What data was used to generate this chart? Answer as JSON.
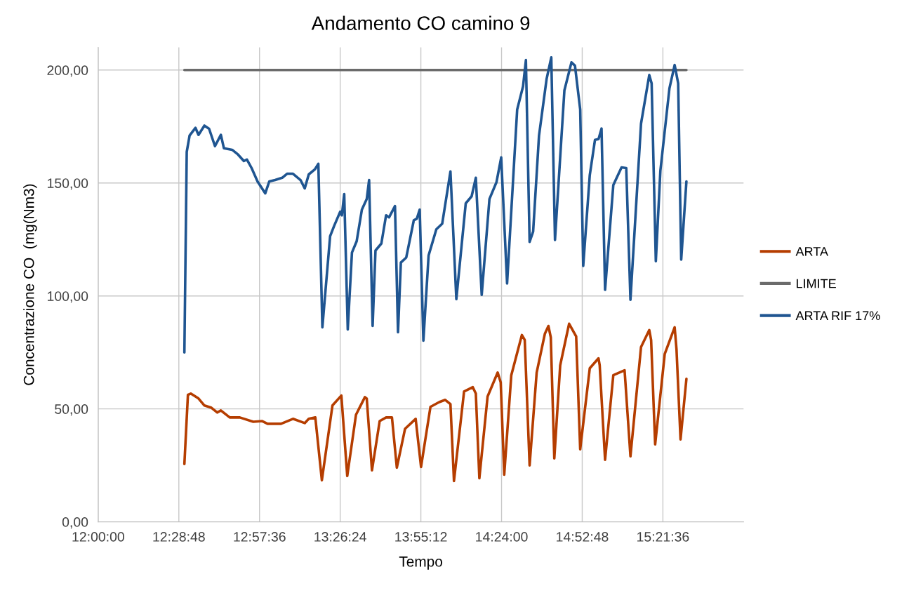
{
  "chart_data": {
    "type": "line",
    "title": "Andamento CO camino 9",
    "xlabel": "Tempo",
    "ylabel": "Concentrazione CO  (mg(Nm3)",
    "xlim": [
      12.0,
      15.84
    ],
    "ylim": [
      0,
      210
    ],
    "xticks": [
      {
        "value": 12.0,
        "label": "12:00:00"
      },
      {
        "value": 12.48,
        "label": "12:28:48"
      },
      {
        "value": 12.96,
        "label": "12:57:36"
      },
      {
        "value": 13.44,
        "label": "13:26:24"
      },
      {
        "value": 13.92,
        "label": "13:55:12"
      },
      {
        "value": 14.4,
        "label": "14:24:00"
      },
      {
        "value": 14.88,
        "label": "14:52:48"
      },
      {
        "value": 15.36,
        "label": "15:21:36"
      }
    ],
    "yticks": [
      {
        "value": 0,
        "label": "0,00"
      },
      {
        "value": 50,
        "label": "50,00"
      },
      {
        "value": 100,
        "label": "100,00"
      },
      {
        "value": 150,
        "label": "150,00"
      },
      {
        "value": 200,
        "label": "200,00"
      }
    ],
    "grid": true,
    "legend": "right",
    "marker": "none",
    "line_style": "solid",
    "series": [
      {
        "name": "ARTA",
        "color": "#b53d00",
        "x": [
          12.513,
          12.534,
          12.551,
          12.597,
          12.632,
          12.674,
          12.709,
          12.73,
          12.783,
          12.843,
          12.923,
          12.976,
          13.008,
          13.088,
          13.159,
          13.229,
          13.253,
          13.292,
          13.331,
          13.394,
          13.447,
          13.482,
          13.534,
          13.587,
          13.598,
          13.629,
          13.675,
          13.713,
          13.748,
          13.777,
          13.826,
          13.889,
          13.921,
          13.977,
          14.029,
          14.065,
          14.096,
          14.117,
          14.177,
          14.229,
          14.247,
          14.268,
          14.317,
          14.377,
          14.395,
          14.416,
          14.458,
          14.521,
          14.538,
          14.567,
          14.609,
          14.658,
          14.679,
          14.693,
          14.714,
          14.749,
          14.802,
          14.844,
          14.868,
          14.925,
          14.977,
          14.984,
          15.016,
          15.065,
          15.132,
          15.135,
          15.167,
          15.23,
          15.279,
          15.29,
          15.314,
          15.371,
          15.43,
          15.441,
          15.465,
          15.5
        ],
        "values": [
          25.6,
          56.2,
          56.8,
          54.6,
          51.5,
          50.5,
          48.4,
          49.3,
          46.2,
          46.2,
          44.3,
          44.6,
          43.4,
          43.4,
          45.6,
          43.7,
          45.6,
          46.2,
          18.4,
          51.5,
          55.9,
          20.3,
          47.4,
          55.2,
          54.6,
          22.8,
          44.6,
          46.2,
          46.2,
          24,
          41.2,
          45.6,
          24.3,
          50.9,
          53,
          54,
          52.1,
          18.1,
          57.7,
          59.6,
          56.8,
          19.3,
          55.5,
          66.1,
          61.8,
          20.9,
          64.9,
          82.7,
          80.5,
          25,
          66.1,
          83.3,
          86.7,
          81.7,
          28.1,
          69.3,
          87.7,
          82.1,
          32.1,
          68,
          72.4,
          69.3,
          27.5,
          64.9,
          67.1,
          64,
          29,
          77.4,
          84.9,
          80.5,
          34.3,
          74.3,
          86.1,
          76.4,
          36.5,
          63.3
        ]
      },
      {
        "name": "LIMITE",
        "color": "#6b6b6b",
        "x": [
          12.513,
          15.5
        ],
        "values": [
          200,
          200
        ]
      },
      {
        "name": "ARTA RIF 17%",
        "color": "#1f5591",
        "x": [
          12.513,
          12.527,
          12.544,
          12.579,
          12.597,
          12.632,
          12.66,
          12.695,
          12.73,
          12.748,
          12.797,
          12.832,
          12.867,
          12.885,
          12.913,
          12.948,
          12.994,
          13.018,
          13.053,
          13.095,
          13.124,
          13.159,
          13.204,
          13.229,
          13.253,
          13.289,
          13.31,
          13.334,
          13.38,
          13.404,
          13.44,
          13.45,
          13.464,
          13.485,
          13.51,
          13.538,
          13.569,
          13.598,
          13.612,
          13.633,
          13.65,
          13.685,
          13.713,
          13.731,
          13.766,
          13.784,
          13.801,
          13.833,
          13.878,
          13.896,
          13.913,
          13.935,
          13.966,
          14.012,
          14.047,
          14.096,
          14.131,
          14.187,
          14.222,
          14.247,
          14.282,
          14.328,
          14.37,
          14.398,
          14.433,
          14.493,
          14.528,
          14.545,
          14.567,
          14.588,
          14.623,
          14.668,
          14.696,
          14.718,
          14.774,
          14.816,
          14.837,
          14.868,
          14.886,
          14.925,
          14.956,
          14.977,
          14.995,
          15.016,
          15.065,
          15.114,
          15.142,
          15.167,
          15.23,
          15.279,
          15.293,
          15.318,
          15.345,
          15.399,
          15.43,
          15.451,
          15.469,
          15.5
        ],
        "values": [
          75,
          163.8,
          171,
          174.4,
          171.3,
          175.4,
          174,
          166.3,
          171.3,
          165.4,
          164.7,
          162.6,
          159.7,
          160.4,
          156.6,
          150.7,
          145.4,
          150.7,
          151.3,
          152.3,
          154.1,
          154.1,
          151.3,
          147.6,
          153.8,
          156,
          158.5,
          86.1,
          126.4,
          131,
          137.3,
          135.7,
          145.1,
          85.2,
          119.2,
          124.2,
          138.2,
          142.9,
          151.3,
          86.7,
          120.1,
          123.2,
          135.7,
          134.8,
          139.8,
          83.9,
          114.8,
          117,
          133.5,
          134.2,
          138.2,
          80.2,
          117.9,
          129.5,
          132,
          155.1,
          98.6,
          141,
          144.1,
          152.3,
          100.5,
          142.9,
          150.4,
          161.3,
          105.5,
          182.5,
          192.8,
          204.4,
          123.9,
          128.5,
          171,
          196,
          205.6,
          124.8,
          191,
          203.4,
          201.9,
          182.5,
          113.3,
          153.5,
          169.1,
          169.4,
          174.1,
          102.7,
          149.1,
          156.9,
          156.6,
          98.3,
          176.3,
          197.8,
          194.1,
          115.4,
          155.4,
          191.9,
          202.2,
          194.1,
          116.1,
          150.7
        ]
      }
    ]
  }
}
